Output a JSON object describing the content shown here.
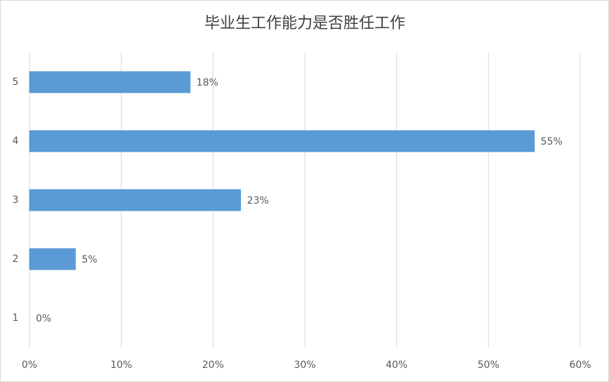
{
  "chart_data": {
    "type": "hbar",
    "title": "毕业生工作能力是否胜任工作",
    "categories": [
      "1",
      "2",
      "3",
      "4",
      "5"
    ],
    "values": [
      0,
      5,
      23,
      55,
      17.5
    ],
    "value_labels": [
      "0%",
      "5%",
      "23%",
      "55%",
      "18%"
    ],
    "color": "#5b9bd5",
    "xlim": [
      0,
      60
    ],
    "xticks": [
      {
        "value": 0,
        "label": "0%"
      },
      {
        "value": 10,
        "label": "10%"
      },
      {
        "value": 20,
        "label": "20%"
      },
      {
        "value": 30,
        "label": "30%"
      },
      {
        "value": 40,
        "label": "40%"
      },
      {
        "value": 50,
        "label": "50%"
      },
      {
        "value": 60,
        "label": "60%"
      }
    ],
    "grid": true
  }
}
